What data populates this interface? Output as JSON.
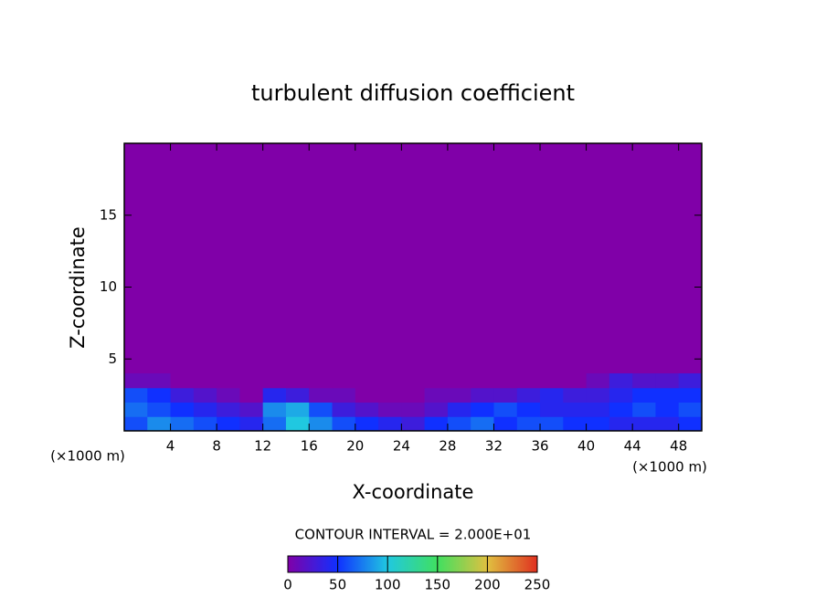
{
  "chart_data": {
    "type": "contour",
    "title": "turbulent diffusion coefficient",
    "xlabel": "X-coordinate",
    "ylabel": "Z-coordinate",
    "x_unit_labels": [
      "(×1000 m)",
      "(×1000 m)"
    ],
    "xlim": [
      0,
      50
    ],
    "xticks": [
      4,
      8,
      12,
      16,
      20,
      24,
      28,
      32,
      36,
      40,
      44,
      48
    ],
    "ylim": [
      0,
      20
    ],
    "yticks": [
      5,
      10,
      15
    ],
    "field": {
      "x": [
        1,
        3,
        5,
        7,
        9,
        11,
        13,
        15,
        17,
        19,
        21,
        23,
        25,
        27,
        29,
        31,
        33,
        35,
        37,
        39,
        41,
        43,
        45,
        47,
        49
      ],
      "z": [
        0.5,
        1.5,
        2.5,
        3.5
      ],
      "dx": 2,
      "dz": 1,
      "values": [
        [
          60,
          80,
          70,
          60,
          50,
          40,
          70,
          100,
          80,
          60,
          50,
          40,
          30,
          50,
          60,
          70,
          50,
          60,
          60,
          50,
          50,
          40,
          40,
          40,
          50
        ],
        [
          70,
          60,
          50,
          40,
          30,
          20,
          80,
          90,
          60,
          30,
          20,
          10,
          10,
          20,
          40,
          50,
          60,
          50,
          40,
          40,
          40,
          50,
          60,
          50,
          60
        ],
        [
          60,
          50,
          30,
          20,
          10,
          0,
          40,
          30,
          10,
          10,
          0,
          0,
          0,
          10,
          10,
          20,
          20,
          30,
          40,
          30,
          30,
          40,
          50,
          50,
          50
        ],
        [
          10,
          10,
          0,
          0,
          0,
          0,
          0,
          0,
          0,
          0,
          0,
          0,
          0,
          0,
          0,
          0,
          0,
          0,
          0,
          0,
          10,
          30,
          20,
          20,
          30
        ]
      ]
    },
    "contour_interval_label": "CONTOUR INTERVAL = 2.000E+01",
    "colorbar": {
      "lim": [
        0,
        250
      ],
      "ticks": [
        0,
        50,
        100,
        150,
        200,
        250
      ],
      "colors": [
        "#8000a8",
        "#1030ff",
        "#20c8e0",
        "#40e060",
        "#e0c040",
        "#e03020"
      ]
    }
  }
}
